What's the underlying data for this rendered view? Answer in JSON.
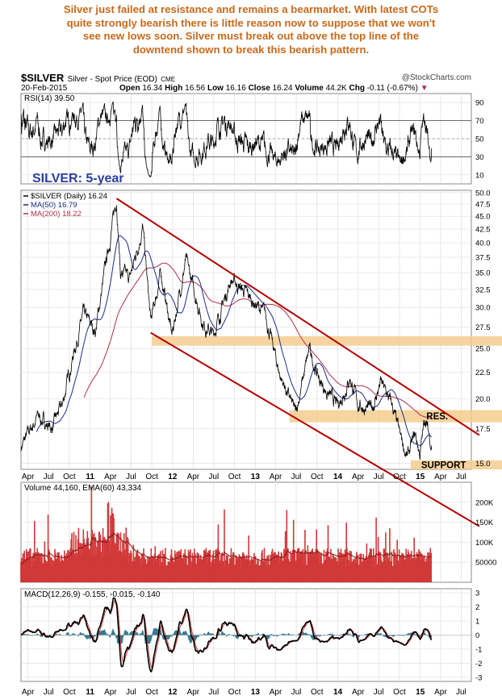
{
  "headline": [
    "Silver just failed at resistance and remains a bearmarket. With latest COTs",
    "quite strongly bearish there is little reason now to suppose that we won't",
    "see new lows soon. Silver must break out above the top line of the",
    "downtend shown to break this bearish pattern."
  ],
  "header": {
    "symbol": "$SILVER",
    "description": "Silver - Spot Price (EOD)",
    "exchange": "CME",
    "watermark": "@StockCharts.com",
    "date": "20-Feb-2015",
    "quote": {
      "open_label": "Open",
      "open": "16.34",
      "high_label": "High",
      "high": "16.56",
      "low_label": "Low",
      "low": "16.16",
      "close_label": "Close",
      "close": "16.24",
      "volume_label": "Volume",
      "volume": "44.2K",
      "chg_label": "Chg",
      "chg": "-0.11 (-0.67%)"
    }
  },
  "colors": {
    "price": "#000000",
    "ma50": "#1a2a8c",
    "ma200": "#b0304a",
    "channel": "#b40000",
    "zone": "#f5cc8f",
    "volume": "#cc2222",
    "ema60": "#8a1a1a",
    "macd": "#000000",
    "signal": "#c84040",
    "histogram": "#3a7a90",
    "title_blue": "#2a3fa0"
  },
  "chart_data": [
    {
      "type": "line",
      "panel": "RSI",
      "legend": "RSI(14) 39.50",
      "yticks": [
        90,
        70,
        50,
        30,
        10
      ],
      "ylim": [
        0,
        100
      ],
      "reference_lines": [
        70,
        30
      ],
      "last": 39.5
    },
    {
      "type": "line",
      "panel": "price",
      "annotation_title": "SILVER: 5-year",
      "legend": [
        {
          "label": "$SILVER (Daily) 16.24"
        },
        {
          "label": "MA(50) 16.79"
        },
        {
          "label": "MA(200) 18.22"
        }
      ],
      "y_scale": "log",
      "yticks": [
        50.0,
        47.5,
        45.0,
        42.5,
        40.0,
        37.5,
        35.0,
        32.5,
        30.0,
        27.5,
        25.0,
        22.5,
        20.0,
        17.5,
        15.0
      ],
      "ylim": [
        14.6,
        50.5
      ],
      "x_range": [
        "2010-03-01",
        "2015-08-15"
      ],
      "price_points": [
        {
          "date": "2010-03-01",
          "value": 16.1
        },
        {
          "date": "2010-05-15",
          "value": 18.5
        },
        {
          "date": "2010-07-15",
          "value": 17.5
        },
        {
          "date": "2010-09-01",
          "value": 19.5
        },
        {
          "date": "2010-10-15",
          "value": 24.0
        },
        {
          "date": "2010-12-01",
          "value": 29.0
        },
        {
          "date": "2011-01-25",
          "value": 27.0
        },
        {
          "date": "2011-03-10",
          "value": 36.0
        },
        {
          "date": "2011-04-28",
          "value": 48.7
        },
        {
          "date": "2011-05-15",
          "value": 35.0
        },
        {
          "date": "2011-06-25",
          "value": 34.0
        },
        {
          "date": "2011-08-22",
          "value": 43.0
        },
        {
          "date": "2011-09-26",
          "value": 28.0
        },
        {
          "date": "2011-11-10",
          "value": 35.0
        },
        {
          "date": "2011-12-29",
          "value": 26.5
        },
        {
          "date": "2012-02-28",
          "value": 37.0
        },
        {
          "date": "2012-05-15",
          "value": 28.0
        },
        {
          "date": "2012-06-28",
          "value": 26.5
        },
        {
          "date": "2012-09-15",
          "value": 34.0
        },
        {
          "date": "2012-10-20",
          "value": 33.0
        },
        {
          "date": "2012-12-31",
          "value": 30.5
        },
        {
          "date": "2013-02-15",
          "value": 29.0
        },
        {
          "date": "2013-04-16",
          "value": 22.5
        },
        {
          "date": "2013-06-28",
          "value": 18.7
        },
        {
          "date": "2013-08-28",
          "value": 24.8
        },
        {
          "date": "2013-10-15",
          "value": 21.5
        },
        {
          "date": "2013-12-31",
          "value": 19.3
        },
        {
          "date": "2014-02-24",
          "value": 22.0
        },
        {
          "date": "2014-03-31",
          "value": 19.5
        },
        {
          "date": "2014-05-31",
          "value": 19.0
        },
        {
          "date": "2014-07-10",
          "value": 21.5
        },
        {
          "date": "2014-08-31",
          "value": 19.3
        },
        {
          "date": "2014-10-01",
          "value": 17.0
        },
        {
          "date": "2014-11-05",
          "value": 15.4
        },
        {
          "date": "2014-12-10",
          "value": 17.0
        },
        {
          "date": "2014-12-31",
          "value": 15.6
        },
        {
          "date": "2015-01-22",
          "value": 18.4
        },
        {
          "date": "2015-02-20",
          "value": 16.24
        }
      ],
      "annotations": [
        {
          "label": "RES.",
          "zone": [
            18.0,
            19.0
          ]
        },
        {
          "label": "SUPPORT",
          "zone": [
            14.6,
            15.2
          ]
        },
        {
          "label": "",
          "zone": [
            25.3,
            26.4
          ]
        }
      ],
      "channel_lines": [
        {
          "name": "upper",
          "from": {
            "date": "2011-04-28",
            "value": 48.7
          },
          "to": {
            "date": "2015-08-15",
            "value": 18.0
          }
        },
        {
          "name": "lower",
          "from": {
            "date": "2011-09-26",
            "value": 26.8
          },
          "to": {
            "date": "2015-08-15",
            "value": 12.0
          }
        }
      ]
    },
    {
      "type": "bar",
      "panel": "volume",
      "legend": "Volume 44,160, EMA(60) 43,334",
      "yticks": [
        "200K",
        "150K",
        "100K",
        "50000"
      ],
      "ylim": [
        0,
        250000
      ],
      "last_volume": 44160,
      "ema60": 43334
    },
    {
      "type": "line",
      "panel": "MACD",
      "legend": "MACD(12,26,9) -0.155, -0.015, -0.140",
      "yticks": [
        3,
        2,
        1,
        0,
        -1,
        -2,
        -3
      ],
      "ylim": [
        -3.3,
        3.3
      ],
      "values": {
        "macd": -0.155,
        "signal": -0.015,
        "histogram": -0.14
      }
    }
  ],
  "x_axis": {
    "labels": [
      {
        "text": "Apr",
        "date": "2010-04-01",
        "bold": false
      },
      {
        "text": "Jul",
        "date": "2010-07-01",
        "bold": false
      },
      {
        "text": "Oct",
        "date": "2010-10-01",
        "bold": false
      },
      {
        "text": "11",
        "date": "2011-01-01",
        "bold": true
      },
      {
        "text": "Apr",
        "date": "2011-04-01",
        "bold": false
      },
      {
        "text": "Jul",
        "date": "2011-07-01",
        "bold": false
      },
      {
        "text": "Oct",
        "date": "2011-10-01",
        "bold": false
      },
      {
        "text": "12",
        "date": "2012-01-01",
        "bold": true
      },
      {
        "text": "Apr",
        "date": "2012-04-01",
        "bold": false
      },
      {
        "text": "Jul",
        "date": "2012-07-01",
        "bold": false
      },
      {
        "text": "Oct",
        "date": "2012-10-01",
        "bold": false
      },
      {
        "text": "13",
        "date": "2013-01-01",
        "bold": true
      },
      {
        "text": "Apr",
        "date": "2013-04-01",
        "bold": false
      },
      {
        "text": "Jul",
        "date": "2013-07-01",
        "bold": false
      },
      {
        "text": "Oct",
        "date": "2013-10-01",
        "bold": false
      },
      {
        "text": "14",
        "date": "2014-01-01",
        "bold": true
      },
      {
        "text": "Apr",
        "date": "2014-04-01",
        "bold": false
      },
      {
        "text": "Jul",
        "date": "2014-07-01",
        "bold": false
      },
      {
        "text": "Oct",
        "date": "2014-10-01",
        "bold": false
      },
      {
        "text": "15",
        "date": "2015-01-01",
        "bold": true
      },
      {
        "text": "Apr",
        "date": "2015-04-01",
        "bold": false
      },
      {
        "text": "Jul",
        "date": "2015-07-01",
        "bold": false
      }
    ]
  }
}
